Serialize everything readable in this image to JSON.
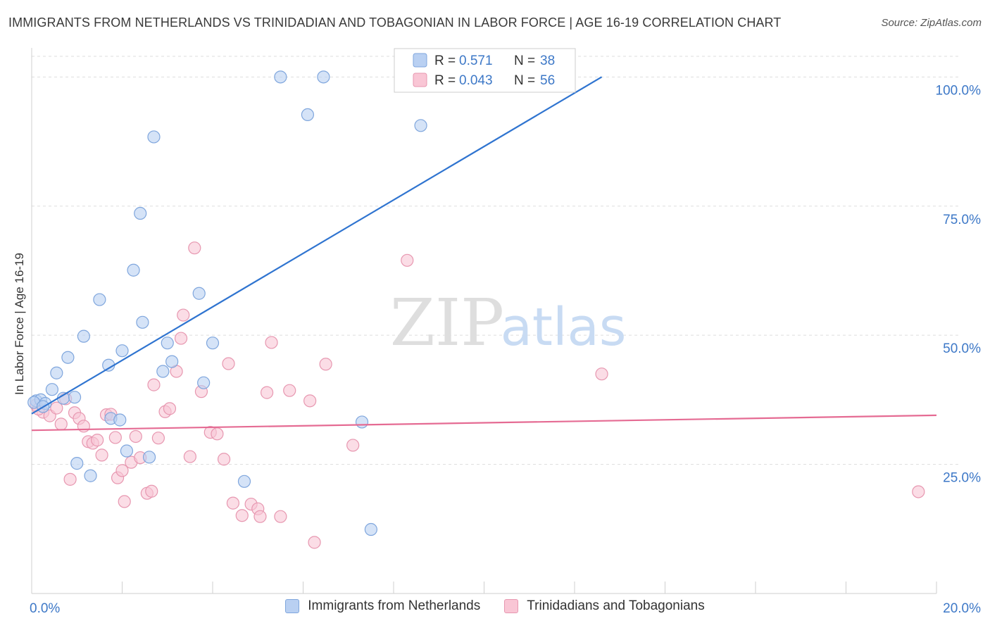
{
  "title": "IMMIGRANTS FROM NETHERLANDS VS TRINIDADIAN AND TOBAGONIAN IN LABOR FORCE | AGE 16-19 CORRELATION CHART",
  "source": "Source: ZipAtlas.com",
  "watermark": {
    "zip": "ZIP",
    "atlas": "atlas"
  },
  "legend_top": {
    "rows": [
      {
        "r_label": "R =",
        "r_value": "0.571",
        "n_label": "N =",
        "n_value": "38"
      },
      {
        "r_label": "R =",
        "r_value": "0.043",
        "n_label": "N =",
        "n_value": "56"
      }
    ]
  },
  "colors": {
    "blue_fill": "#b9d0f2",
    "blue_stroke": "#7fa6dd",
    "blue_line": "#2f74d0",
    "pink_fill": "#f9c6d5",
    "pink_stroke": "#e797b0",
    "pink_line": "#e56b93",
    "value_text": "#3d78c7",
    "grid": "#dddddd"
  },
  "chart_data": {
    "type": "scatter",
    "xlabel": "",
    "ylabel": "In Labor Force | Age 16-19",
    "xlim": [
      0,
      20
    ],
    "ylim": [
      0,
      104
    ],
    "x_tick_labels": [
      "0.0%",
      "20.0%"
    ],
    "y_ticks": [
      25,
      50,
      75,
      100
    ],
    "y_tick_labels": [
      "25.0%",
      "50.0%",
      "75.0%",
      "100.0%"
    ],
    "grid": true,
    "series": [
      {
        "name": "Immigrants from Netherlands",
        "color": "blue",
        "trend": [
          [
            0,
            34.8
          ],
          [
            12.6,
            100
          ]
        ],
        "points": [
          [
            0.1,
            37.3
          ],
          [
            0.2,
            37.5
          ],
          [
            0.3,
            36.8
          ],
          [
            0.45,
            39.5
          ],
          [
            0.55,
            42.7
          ],
          [
            0.7,
            37.8
          ],
          [
            0.8,
            45.7
          ],
          [
            0.95,
            38.0
          ],
          [
            1.0,
            25.2
          ],
          [
            1.15,
            49.8
          ],
          [
            1.3,
            22.8
          ],
          [
            1.5,
            56.9
          ],
          [
            1.7,
            44.2
          ],
          [
            1.75,
            33.9
          ],
          [
            1.95,
            33.6
          ],
          [
            2.0,
            47.0
          ],
          [
            2.1,
            27.6
          ],
          [
            2.25,
            62.6
          ],
          [
            2.4,
            73.6
          ],
          [
            2.45,
            52.5
          ],
          [
            2.6,
            26.4
          ],
          [
            2.7,
            88.4
          ],
          [
            2.9,
            43.0
          ],
          [
            3.0,
            48.5
          ],
          [
            3.1,
            44.9
          ],
          [
            3.7,
            58.1
          ],
          [
            3.8,
            40.8
          ],
          [
            4.0,
            48.5
          ],
          [
            4.7,
            21.7
          ],
          [
            5.5,
            100.0
          ],
          [
            6.1,
            92.7
          ],
          [
            6.45,
            100.0
          ],
          [
            7.3,
            33.2
          ],
          [
            7.5,
            12.4
          ],
          [
            8.6,
            90.6
          ],
          [
            10.7,
            100.0
          ],
          [
            0.05,
            37.0
          ],
          [
            0.25,
            36.2
          ]
        ]
      },
      {
        "name": "Trinidadians and Tobagonians",
        "color": "pink",
        "trend": [
          [
            0,
            31.6
          ],
          [
            20,
            34.5
          ]
        ],
        "points": [
          [
            0.1,
            36.5
          ],
          [
            0.25,
            35.1
          ],
          [
            0.4,
            34.4
          ],
          [
            0.55,
            35.9
          ],
          [
            0.65,
            32.8
          ],
          [
            0.75,
            37.7
          ],
          [
            0.85,
            22.1
          ],
          [
            0.95,
            35.0
          ],
          [
            1.05,
            33.9
          ],
          [
            1.15,
            32.4
          ],
          [
            1.25,
            29.4
          ],
          [
            1.35,
            29.1
          ],
          [
            1.45,
            29.7
          ],
          [
            1.55,
            26.8
          ],
          [
            1.65,
            34.6
          ],
          [
            1.75,
            34.7
          ],
          [
            1.85,
            30.2
          ],
          [
            1.9,
            22.4
          ],
          [
            2.0,
            23.8
          ],
          [
            2.05,
            17.8
          ],
          [
            2.2,
            25.4
          ],
          [
            2.3,
            30.4
          ],
          [
            2.4,
            26.3
          ],
          [
            2.55,
            19.4
          ],
          [
            2.65,
            19.8
          ],
          [
            2.7,
            40.4
          ],
          [
            2.8,
            30.1
          ],
          [
            2.95,
            35.2
          ],
          [
            3.05,
            35.8
          ],
          [
            3.2,
            43.0
          ],
          [
            3.3,
            49.4
          ],
          [
            3.35,
            53.9
          ],
          [
            3.5,
            26.5
          ],
          [
            3.6,
            66.9
          ],
          [
            3.75,
            39.1
          ],
          [
            3.95,
            31.2
          ],
          [
            4.1,
            30.9
          ],
          [
            4.25,
            26.0
          ],
          [
            4.35,
            44.5
          ],
          [
            4.45,
            17.5
          ],
          [
            4.65,
            15.1
          ],
          [
            4.85,
            17.3
          ],
          [
            5.0,
            16.4
          ],
          [
            5.05,
            14.9
          ],
          [
            5.2,
            38.9
          ],
          [
            5.3,
            48.6
          ],
          [
            5.5,
            14.9
          ],
          [
            5.7,
            39.3
          ],
          [
            6.15,
            37.3
          ],
          [
            6.25,
            9.9
          ],
          [
            6.5,
            44.4
          ],
          [
            7.1,
            28.7
          ],
          [
            8.3,
            64.5
          ],
          [
            12.6,
            42.5
          ],
          [
            19.6,
            19.7
          ],
          [
            0.15,
            35.7
          ]
        ]
      }
    ]
  }
}
